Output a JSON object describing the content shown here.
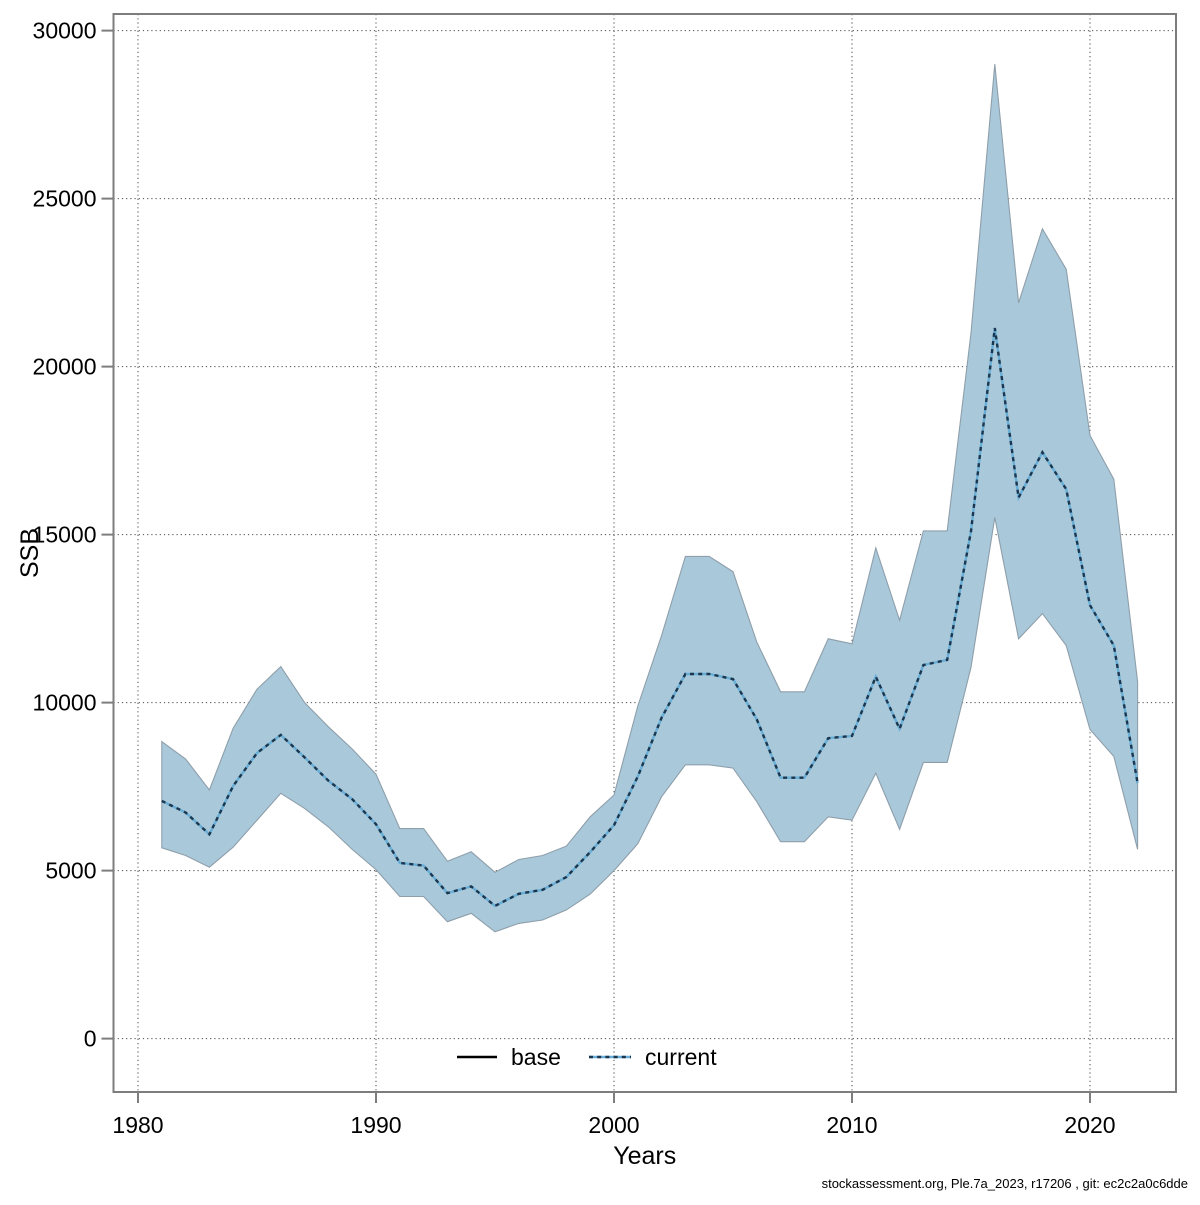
{
  "footer": {
    "text": "stockassessment.org, Ple.7a_2023, r17206 , git: ec2c2a0c6dde"
  },
  "chart_data": {
    "type": "line",
    "title": "",
    "xlabel": "Years",
    "ylabel": "SSB",
    "x_ticks": [
      1980,
      1990,
      2000,
      2010,
      2020
    ],
    "y_ticks": [
      0,
      5000,
      10000,
      15000,
      20000,
      25000,
      30000
    ],
    "xlim": [
      1979,
      2023.6
    ],
    "ylim": [
      -1600,
      30500
    ],
    "grid": "dotted",
    "legend_position": "bottom-center-inside",
    "legend": [
      {
        "label": "base",
        "style": "solid",
        "color": "#000000"
      },
      {
        "label": "current",
        "style": "dotted",
        "color": "#1b3750",
        "underlay_color": "#68aed6"
      }
    ],
    "band_name": "confidence-interval",
    "colors": {
      "band_fill": "#a9c8d9",
      "band_edge": "#8e9fab",
      "base_line": "#68aed6",
      "current_line": "#1b3750",
      "grid": "#4a4a4a",
      "frame": "#7d7d7d"
    },
    "years": [
      1981,
      1982,
      1983,
      1984,
      1985,
      1986,
      1987,
      1988,
      1989,
      1990,
      1991,
      1992,
      1993,
      1994,
      1995,
      1996,
      1997,
      1998,
      1999,
      2000,
      2001,
      2002,
      2003,
      2004,
      2005,
      2006,
      2007,
      2008,
      2009,
      2010,
      2011,
      2012,
      2013,
      2014,
      2015,
      2016,
      2017,
      2018,
      2019,
      2020,
      2021,
      2022
    ],
    "series": [
      {
        "name": "base",
        "values": [
          7075,
          6730,
          6080,
          7520,
          8500,
          9040,
          8370,
          7675,
          7125,
          6380,
          5230,
          5150,
          4330,
          4530,
          3950,
          4310,
          4430,
          4810,
          5550,
          6350,
          7800,
          9550,
          10850,
          10850,
          10700,
          9500,
          7765,
          7765,
          8940,
          9010,
          10770,
          9220,
          11120,
          11270,
          15100,
          21150,
          16100,
          17450,
          16350,
          12900,
          11700,
          7600
        ]
      },
      {
        "name": "current",
        "values": [
          7075,
          6730,
          6080,
          7520,
          8500,
          9040,
          8370,
          7675,
          7125,
          6380,
          5230,
          5150,
          4330,
          4530,
          3950,
          4310,
          4430,
          4810,
          5550,
          6350,
          7800,
          9550,
          10850,
          10850,
          10700,
          9500,
          7765,
          7765,
          8940,
          9010,
          10770,
          9220,
          11120,
          11270,
          15100,
          21150,
          16100,
          17450,
          16350,
          12900,
          11700,
          7600
        ]
      },
      {
        "name": "ci_lower",
        "values": [
          5680,
          5450,
          5100,
          5700,
          6500,
          7300,
          6850,
          6300,
          5630,
          5030,
          4230,
          4230,
          3480,
          3730,
          3180,
          3430,
          3530,
          3830,
          4300,
          5000,
          5800,
          7200,
          8150,
          8150,
          8050,
          7050,
          5860,
          5860,
          6600,
          6500,
          7900,
          6230,
          8220,
          8220,
          11050,
          15510,
          11900,
          12650,
          11700,
          9200,
          8400,
          5630
        ]
      },
      {
        "name": "ci_upper",
        "values": [
          8840,
          8320,
          7400,
          9240,
          10400,
          11070,
          10000,
          9280,
          8620,
          7870,
          6250,
          6250,
          5280,
          5560,
          4950,
          5330,
          5450,
          5730,
          6600,
          7250,
          9900,
          12000,
          14350,
          14350,
          13900,
          11800,
          10320,
          10320,
          11900,
          11750,
          14600,
          12450,
          15110,
          15110,
          21000,
          29000,
          21900,
          24100,
          22900,
          17950,
          16650,
          10620
        ]
      }
    ]
  }
}
